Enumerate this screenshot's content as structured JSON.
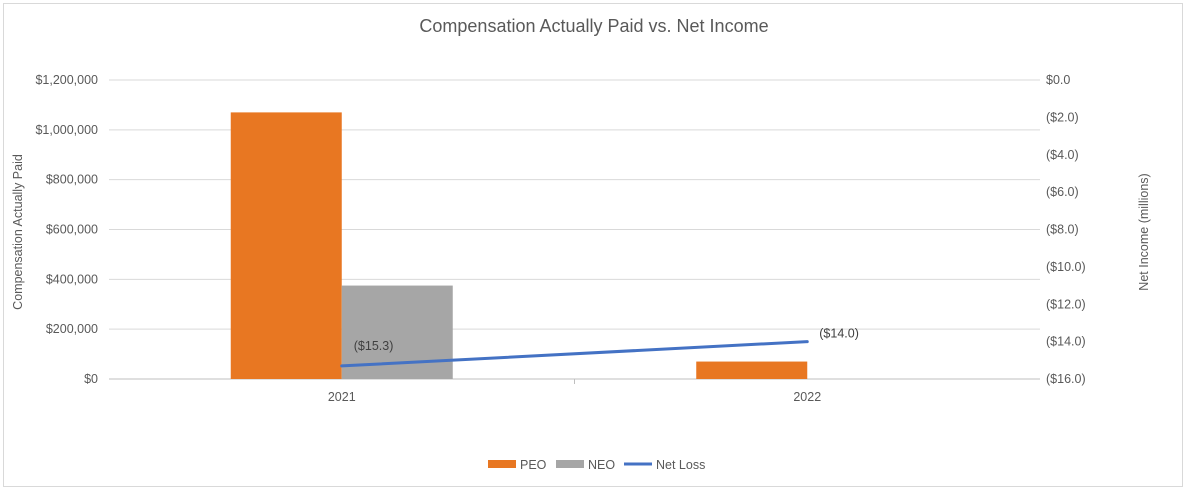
{
  "chart_data": {
    "type": "bar",
    "title": "Compensation Actually Paid vs. Net Income",
    "categories": [
      "2021",
      "2022"
    ],
    "ylabel": "Compensation Actually Paid",
    "y2label": "Net Income (millions)",
    "ylim": [
      0,
      1200000
    ],
    "y2lim": [
      -16.0,
      0.0
    ],
    "y_ticks": [
      "$0",
      "$200,000",
      "$400,000",
      "$600,000",
      "$800,000",
      "$1,000,000",
      "$1,200,000"
    ],
    "y_tick_values": [
      0,
      200000,
      400000,
      600000,
      800000,
      1000000,
      1200000
    ],
    "y2_ticks": [
      "($16.0)",
      "($14.0)",
      "($12.0)",
      "($10.0)",
      "($8.0)",
      "($6.0)",
      "($4.0)",
      "($2.0)",
      "$0.0"
    ],
    "y2_tick_values": [
      -16,
      -14,
      -12,
      -10,
      -8,
      -6,
      -4,
      -2,
      0
    ],
    "series": [
      {
        "name": "PEO",
        "type": "bar",
        "axis": "primary",
        "color": "#E87722",
        "values": [
          1070000,
          70000
        ]
      },
      {
        "name": "NEO",
        "type": "bar",
        "axis": "primary",
        "color": "#A6A6A6",
        "values": [
          375000,
          null
        ]
      },
      {
        "name": "Net Loss",
        "type": "line",
        "axis": "secondary",
        "color": "#4472C4",
        "values": [
          -15.3,
          -14.0
        ],
        "data_labels": [
          "($15.3)",
          "($14.0)"
        ]
      }
    ],
    "legend_position": "bottom",
    "grid": true
  }
}
